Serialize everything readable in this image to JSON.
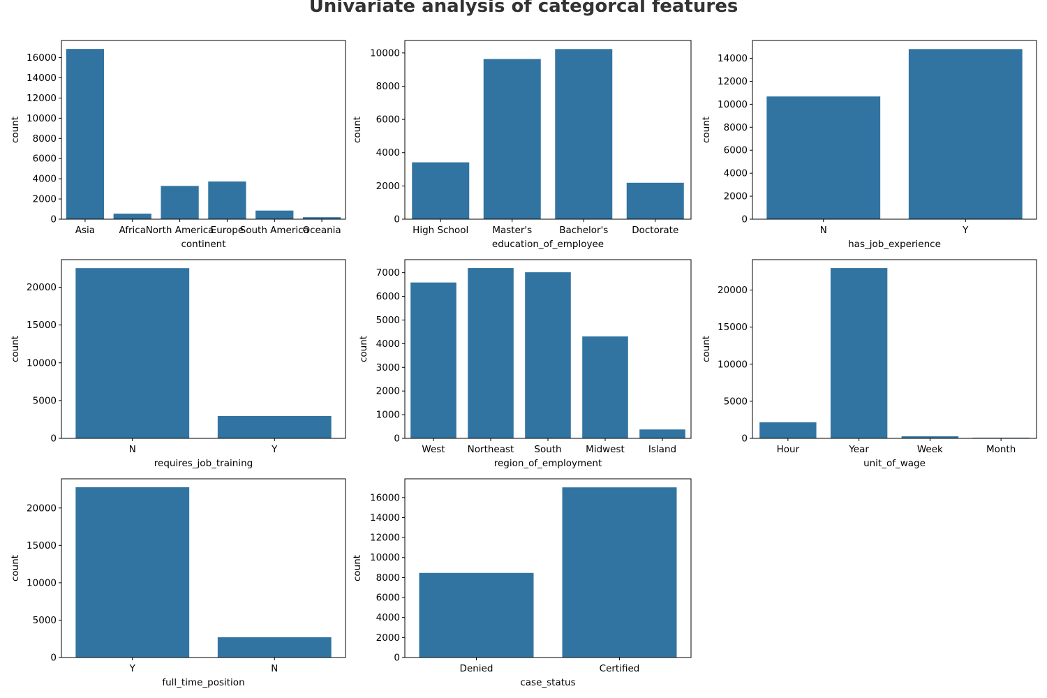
{
  "title": "Univariate analysis of categorcal features",
  "bar_color": "#3274a1",
  "chart_data": [
    {
      "type": "bar",
      "xlabel": "continent",
      "ylabel": "count",
      "categories": [
        "Asia",
        "Africa",
        "North America",
        "Europe",
        "South America",
        "Oceania"
      ],
      "values": [
        16861,
        551,
        3292,
        3732,
        852,
        192
      ],
      "ylim": [
        0,
        17700
      ],
      "yticks": [
        0,
        2000,
        4000,
        6000,
        8000,
        10000,
        12000,
        14000,
        16000
      ]
    },
    {
      "type": "bar",
      "xlabel": "education_of_employee",
      "ylabel": "count",
      "categories": [
        "High School",
        "Master's",
        "Bachelor's",
        "Doctorate"
      ],
      "values": [
        3420,
        9634,
        10234,
        2192
      ],
      "ylim": [
        0,
        10750
      ],
      "yticks": [
        0,
        2000,
        4000,
        6000,
        8000,
        10000
      ]
    },
    {
      "type": "bar",
      "xlabel": "has_job_experience",
      "ylabel": "count",
      "categories": [
        "N",
        "Y"
      ],
      "values": [
        10678,
        14802
      ],
      "ylim": [
        0,
        15550
      ],
      "yticks": [
        0,
        2000,
        4000,
        6000,
        8000,
        10000,
        12000,
        14000
      ]
    },
    {
      "type": "bar",
      "xlabel": "requires_job_training",
      "ylabel": "count",
      "categories": [
        "N",
        "Y"
      ],
      "values": [
        22525,
        2955
      ],
      "ylim": [
        0,
        23650
      ],
      "yticks": [
        0,
        5000,
        10000,
        15000,
        20000
      ]
    },
    {
      "type": "bar",
      "xlabel": "region_of_employment",
      "ylabel": "count",
      "categories": [
        "West",
        "Northeast",
        "South",
        "Midwest",
        "Island"
      ],
      "values": [
        6586,
        7195,
        7017,
        4307,
        375
      ],
      "ylim": [
        0,
        7550
      ],
      "yticks": [
        0,
        1000,
        2000,
        3000,
        4000,
        5000,
        6000,
        7000
      ]
    },
    {
      "type": "bar",
      "xlabel": "unit_of_wage",
      "ylabel": "count",
      "categories": [
        "Hour",
        "Year",
        "Week",
        "Month"
      ],
      "values": [
        2157,
        22962,
        272,
        89
      ],
      "ylim": [
        0,
        24100
      ],
      "yticks": [
        0,
        5000,
        10000,
        15000,
        20000
      ]
    },
    {
      "type": "bar",
      "xlabel": "full_time_position",
      "ylabel": "count",
      "categories": [
        "Y",
        "N"
      ],
      "values": [
        22773,
        2707
      ],
      "ylim": [
        0,
        23900
      ],
      "yticks": [
        0,
        5000,
        10000,
        15000,
        20000
      ]
    },
    {
      "type": "bar",
      "xlabel": "case_status",
      "ylabel": "count",
      "categories": [
        "Denied",
        "Certified"
      ],
      "values": [
        8462,
        17018
      ],
      "ylim": [
        0,
        17870
      ],
      "yticks": [
        0,
        2000,
        4000,
        6000,
        8000,
        10000,
        12000,
        14000,
        16000
      ]
    }
  ]
}
